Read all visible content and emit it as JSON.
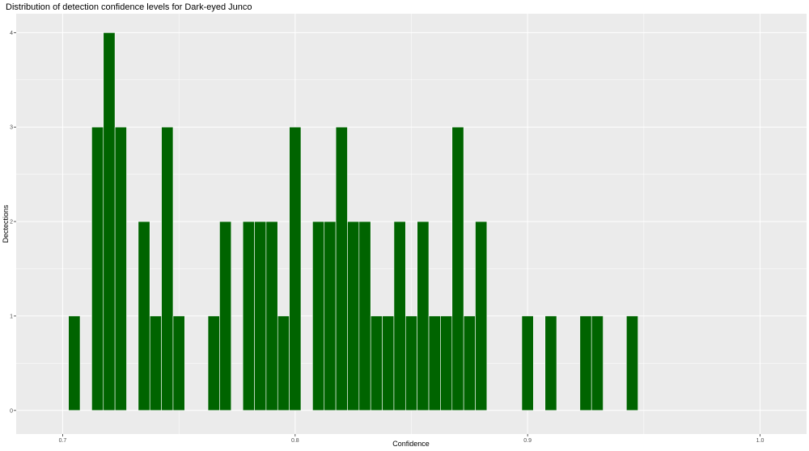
{
  "chart_data": {
    "type": "bar",
    "title": "Distribution of detection confidence levels for Dark-eyed Junco",
    "xlabel": "Confidence",
    "ylabel": "Dectections",
    "xlim": [
      0.68,
      1.02
    ],
    "ylim": [
      -0.25,
      4.2
    ],
    "x_ticks": [
      "0.7",
      "0.8",
      "0.9",
      "1.0"
    ],
    "y_ticks": [
      "0",
      "1",
      "2",
      "3",
      "4"
    ],
    "bin_width": 0.005,
    "bar_color": "#006400",
    "panel_background": "#ebebeb",
    "grid": true,
    "bins": [
      {
        "x": 0.705,
        "count": 1
      },
      {
        "x": 0.715,
        "count": 3
      },
      {
        "x": 0.72,
        "count": 4
      },
      {
        "x": 0.725,
        "count": 3
      },
      {
        "x": 0.735,
        "count": 2
      },
      {
        "x": 0.74,
        "count": 1
      },
      {
        "x": 0.745,
        "count": 3
      },
      {
        "x": 0.75,
        "count": 1
      },
      {
        "x": 0.765,
        "count": 1
      },
      {
        "x": 0.77,
        "count": 2
      },
      {
        "x": 0.78,
        "count": 2
      },
      {
        "x": 0.785,
        "count": 2
      },
      {
        "x": 0.79,
        "count": 2
      },
      {
        "x": 0.795,
        "count": 1
      },
      {
        "x": 0.8,
        "count": 3
      },
      {
        "x": 0.81,
        "count": 2
      },
      {
        "x": 0.815,
        "count": 2
      },
      {
        "x": 0.82,
        "count": 3
      },
      {
        "x": 0.825,
        "count": 2
      },
      {
        "x": 0.83,
        "count": 2
      },
      {
        "x": 0.835,
        "count": 1
      },
      {
        "x": 0.84,
        "count": 1
      },
      {
        "x": 0.845,
        "count": 2
      },
      {
        "x": 0.85,
        "count": 1
      },
      {
        "x": 0.855,
        "count": 2
      },
      {
        "x": 0.86,
        "count": 1
      },
      {
        "x": 0.865,
        "count": 1
      },
      {
        "x": 0.87,
        "count": 3
      },
      {
        "x": 0.875,
        "count": 1
      },
      {
        "x": 0.88,
        "count": 2
      },
      {
        "x": 0.9,
        "count": 1
      },
      {
        "x": 0.91,
        "count": 1
      },
      {
        "x": 0.925,
        "count": 1
      },
      {
        "x": 0.93,
        "count": 1
      },
      {
        "x": 0.945,
        "count": 1
      }
    ]
  }
}
